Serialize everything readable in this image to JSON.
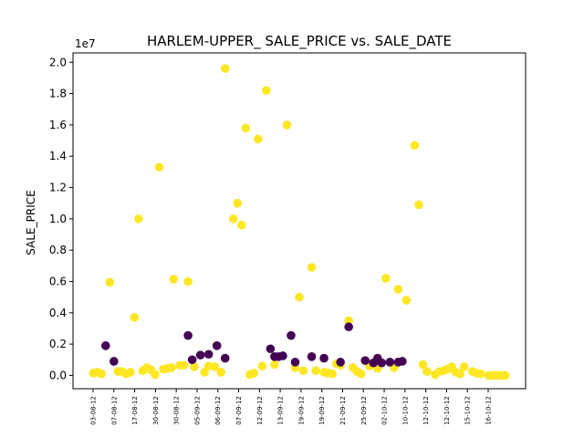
{
  "chart_data": {
    "type": "scatter",
    "title": "HARLEM-UPPER_ SALE_PRICE vs. SALE_DATE",
    "xlabel": "",
    "ylabel": "SALE_PRICE",
    "y_offset_label": "1e7",
    "ylim": [
      -850000,
      20600000
    ],
    "y_ticks": [
      0.0,
      0.2,
      0.4,
      0.6,
      0.8,
      1.0,
      1.2,
      1.4,
      1.6,
      1.8,
      2.0
    ],
    "y_tick_labels": [
      "0.0",
      "0.2",
      "0.4",
      "0.6",
      "0.8",
      "1.0",
      "1.2",
      "1.4",
      "1.6",
      "1.8",
      "2.0"
    ],
    "x_categories": [
      "03-08-12",
      "07-08-12",
      "17-08-12",
      "30-08-12",
      "30-08-12",
      "05-09-12",
      "06-09-12",
      "07-09-12",
      "12-09-12",
      "13-09-12",
      "19-09-12",
      "19-09-12",
      "21-09-12",
      "25-09-12",
      "02-10-12",
      "10-10-12",
      "12-10-12",
      "12-10-12",
      "15-10-12",
      "16-10-12"
    ],
    "x_range": [
      -0.1,
      20.1
    ],
    "grid": false,
    "legend": "none",
    "colors": {
      "class_a": "#fde725",
      "class_b": "#440154"
    },
    "series": [
      {
        "color": "#fde725",
        "x": [
          0.0,
          0.2,
          0.4,
          0.8,
          1.2,
          1.4,
          1.6,
          1.8,
          2.0,
          2.2,
          2.4,
          2.6,
          2.8,
          3.0,
          3.2,
          3.4,
          3.6,
          3.8,
          3.9,
          4.2,
          4.4,
          4.6,
          4.9,
          5.4,
          5.6,
          5.9,
          6.2,
          6.4,
          6.8,
          7.0,
          7.2,
          7.4,
          7.6,
          7.8,
          8.0,
          8.2,
          8.4,
          8.8,
          9.4,
          9.8,
          10.0,
          10.2,
          10.6,
          10.8,
          11.2,
          11.4,
          11.6,
          11.8,
          12.0,
          12.4,
          12.6,
          12.8,
          13.0,
          13.4,
          13.6,
          13.8,
          14.2,
          14.6,
          14.8,
          15.2,
          15.6,
          15.8,
          16.0,
          16.2,
          16.6,
          16.8,
          17.0,
          17.2,
          17.4,
          17.6,
          17.8,
          18.0,
          18.4,
          18.6,
          18.8,
          19.2,
          19.4,
          19.6,
          19.8,
          20.0
        ],
        "y": [
          150000,
          200000,
          100000,
          5950000,
          250000,
          250000,
          100000,
          200000,
          3700000,
          10000000,
          300000,
          500000,
          350000,
          50000,
          13300000,
          400000,
          450000,
          500000,
          6150000,
          650000,
          650000,
          6000000,
          550000,
          200000,
          600000,
          550000,
          200000,
          19600000,
          10000000,
          11000000,
          9600000,
          15800000,
          50000,
          150000,
          15100000,
          600000,
          18200000,
          700000,
          16000000,
          500000,
          5000000,
          300000,
          6900000,
          300000,
          200000,
          150000,
          100000,
          750000,
          650000,
          3500000,
          500000,
          250000,
          100000,
          600000,
          700000,
          450000,
          6200000,
          500000,
          5500000,
          4800000,
          14700000,
          10900000,
          700000,
          250000,
          50000,
          250000,
          300000,
          400000,
          550000,
          200000,
          100000,
          550000,
          250000,
          150000,
          100000,
          0,
          0,
          0,
          0,
          0
        ]
      },
      {
        "color": "#440154",
        "x": [
          0.6,
          1.0,
          4.6,
          4.8,
          5.2,
          5.6,
          6.0,
          6.4,
          8.6,
          8.8,
          9.0,
          9.2,
          9.6,
          9.8,
          10.6,
          11.2,
          12.0,
          12.4,
          13.2,
          13.6,
          13.8,
          14.0,
          14.4,
          14.8,
          15.0
        ],
        "y": [
          1900000,
          900000,
          2550000,
          1000000,
          1300000,
          1350000,
          1900000,
          1100000,
          1700000,
          1200000,
          1200000,
          1250000,
          2550000,
          850000,
          1200000,
          1100000,
          850000,
          3100000,
          950000,
          800000,
          1100000,
          800000,
          850000,
          850000,
          900000
        ]
      }
    ]
  }
}
